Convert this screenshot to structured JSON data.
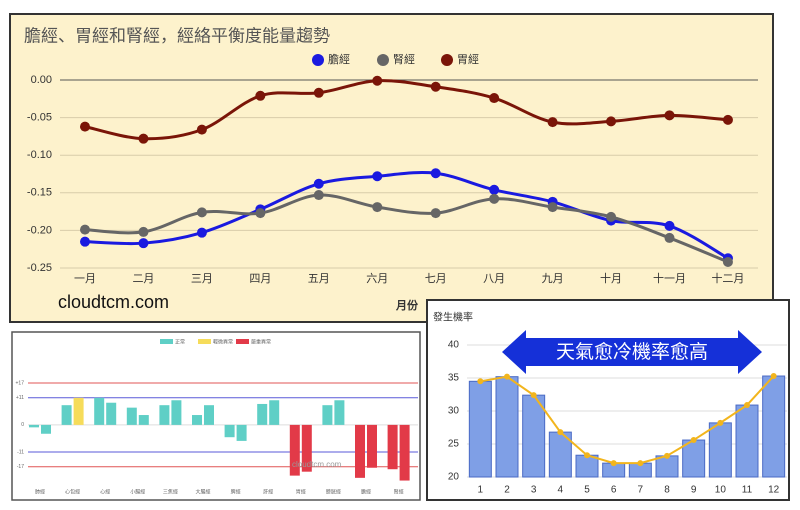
{
  "chart_data": [
    {
      "type": "line",
      "title": "膽經、胃經和腎經，經絡平衡度能量趨勢",
      "x_label": "月份",
      "watermark": "cloudtcm.com",
      "categories": [
        "一月",
        "二月",
        "三月",
        "四月",
        "五月",
        "六月",
        "七月",
        "八月",
        "九月",
        "十月",
        "十一月",
        "十二月"
      ],
      "series": [
        {
          "name": "膽經",
          "color": "#1a1ae0",
          "values": [
            -0.215,
            -0.217,
            -0.203,
            -0.172,
            -0.138,
            -0.128,
            -0.124,
            -0.146,
            -0.162,
            -0.187,
            -0.194,
            -0.237
          ]
        },
        {
          "name": "腎經",
          "color": "#666666",
          "values": [
            -0.199,
            -0.202,
            -0.176,
            -0.177,
            -0.153,
            -0.169,
            -0.177,
            -0.158,
            -0.169,
            -0.182,
            -0.21,
            -0.242
          ]
        },
        {
          "name": "胃經",
          "color": "#7a1508",
          "values": [
            -0.062,
            -0.078,
            -0.066,
            -0.021,
            -0.017,
            -0.001,
            -0.009,
            -0.024,
            -0.056,
            -0.055,
            -0.047,
            -0.053
          ]
        }
      ],
      "ylim": [
        -0.25,
        0.0
      ],
      "yticks": [
        {
          "value": 0,
          "label": "0.00"
        },
        {
          "value": -0.05,
          "label": "-0.05"
        },
        {
          "value": -0.1,
          "label": "-0.10"
        },
        {
          "value": -0.15,
          "label": "-0.15"
        },
        {
          "value": -0.2,
          "label": "-0.20"
        },
        {
          "value": -0.25,
          "label": "-0.25"
        }
      ],
      "grid": true,
      "legend": "top",
      "background": "#fdf2cc"
    },
    {
      "type": "grouped-bar",
      "watermark": "cloudtcm.com",
      "legend": [
        {
          "name": "正常",
          "color": "#5fcfc6"
        },
        {
          "name": "輕微異常",
          "color": "#f6dc5a"
        },
        {
          "name": "嚴重異常",
          "color": "#e23a48"
        }
      ],
      "categories": [
        "肺經",
        "心包經",
        "心經",
        "小腸經",
        "三焦經",
        "大腸經",
        "脾經",
        "肝經",
        "胃經",
        "膀胱經",
        "膽經",
        "腎經"
      ],
      "series": [
        {
          "values": [
            -1,
            8,
            11,
            7,
            8,
            4,
            -5,
            8.5,
            -20.6,
            8,
            -21.5,
            -18
          ],
          "status": [
            0,
            0,
            0,
            0,
            0,
            0,
            0,
            0,
            2,
            0,
            2,
            2
          ]
        },
        {
          "values": [
            -3.6,
            11,
            9,
            4,
            10,
            8,
            -6.5,
            10,
            -19,
            10,
            -17.4,
            -22.6
          ],
          "status": [
            0,
            1,
            0,
            0,
            0,
            0,
            0,
            0,
            2,
            0,
            2,
            2
          ]
        }
      ],
      "ylim": [
        -24,
        30
      ],
      "yticks": [
        {
          "value": 17,
          "label": "+17"
        },
        {
          "value": 11,
          "label": "+11"
        },
        0,
        {
          "value": -11,
          "label": "-11"
        },
        {
          "value": -17,
          "label": "-17"
        }
      ],
      "grid_colors": [
        "#e05555",
        "#5a5ad8",
        "#dddddd",
        "#5a5ad8",
        "#e05555"
      ]
    },
    {
      "type": "bar-line",
      "y_label": "發生機率",
      "annotation": "天氣愈冷機率愈高",
      "x": [
        1,
        2,
        3,
        4,
        5,
        6,
        7,
        8,
        9,
        10,
        11,
        12
      ],
      "xlim": [
        0.5,
        12.5
      ],
      "values": [
        34.5,
        35.2,
        32.4,
        26.8,
        23.3,
        22.1,
        22.1,
        23.2,
        25.6,
        28.2,
        30.9,
        35.3
      ],
      "color": "#7f9fe6",
      "line_color": "#f2b51d",
      "ylim": [
        20,
        40
      ],
      "yticks": [
        20,
        25,
        30,
        35,
        40
      ],
      "grid": true
    }
  ]
}
